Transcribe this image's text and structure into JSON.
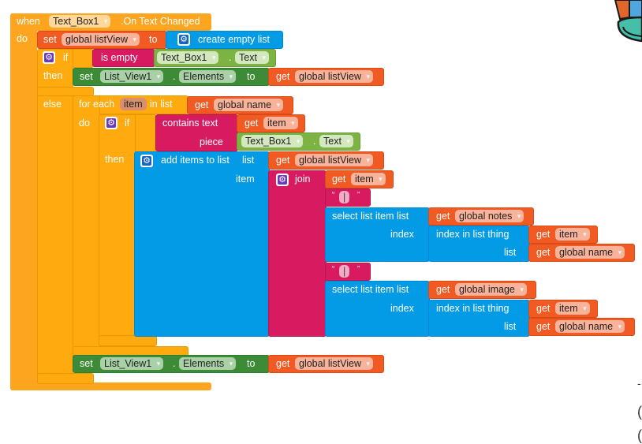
{
  "event": {
    "when": "when",
    "component": "Text_Box1",
    "event_name": ".On Text Changed",
    "do": "do"
  },
  "set1": {
    "set": "set",
    "var": "global listView",
    "to": "to",
    "value": "create empty list"
  },
  "if1": {
    "if": "if",
    "then": "then",
    "else": "else",
    "cond": "is empty",
    "comp": "Text_Box1",
    "dot": ".",
    "prop": "Text"
  },
  "setA": {
    "set": "set",
    "comp": "List_View1",
    "dot": ".",
    "prop": "Elements",
    "to": "to",
    "get": "get",
    "var": "global listView"
  },
  "foreach": {
    "label": "for each",
    "var": "item",
    "in_list": "in list",
    "do": "do",
    "get": "get",
    "list": "global name"
  },
  "if2": {
    "if": "if",
    "then": "then",
    "contains": "contains  text",
    "piece": "piece",
    "get": "get",
    "item": "item",
    "comp": "Text_Box1",
    "dot": ".",
    "prop": "Text"
  },
  "add": {
    "label": "add items to list",
    "list_label": "list",
    "item_label": "item",
    "get": "get",
    "list": "global listView"
  },
  "join": {
    "label": "join",
    "get": "get",
    "item": "item",
    "sep1": "|",
    "sep2": "|"
  },
  "sel1": {
    "label": "select list item  list",
    "index": "index",
    "get": "get",
    "list": "global notes",
    "idx_label": "index in list  thing",
    "idx_list": "list",
    "item": "item",
    "name": "global name"
  },
  "sel2": {
    "label": "select list item  list",
    "index": "index",
    "get": "get",
    "list": "global image",
    "idx_label": "index in list  thing",
    "idx_list": "list",
    "item": "item",
    "name": "global name"
  },
  "setB": {
    "set": "set",
    "comp": "List_View1",
    "dot": ".",
    "prop": "Elements",
    "to": "to",
    "get": "get",
    "var": "global listView"
  }
}
